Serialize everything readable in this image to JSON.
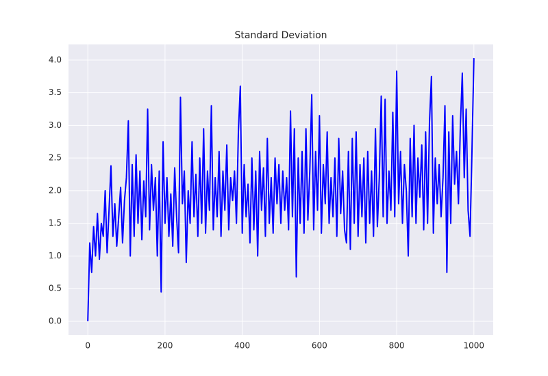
{
  "chart_data": {
    "type": "line",
    "title": "Standard Deviation",
    "x": [
      0,
      5,
      10,
      15,
      20,
      25,
      30,
      35,
      40,
      45,
      50,
      55,
      60,
      65,
      70,
      75,
      80,
      85,
      90,
      95,
      100,
      105,
      110,
      115,
      120,
      125,
      130,
      135,
      140,
      145,
      150,
      155,
      160,
      165,
      170,
      175,
      180,
      185,
      190,
      195,
      200,
      205,
      210,
      215,
      220,
      225,
      230,
      235,
      240,
      245,
      250,
      255,
      260,
      265,
      270,
      275,
      280,
      285,
      290,
      295,
      300,
      305,
      310,
      315,
      320,
      325,
      330,
      335,
      340,
      345,
      350,
      355,
      360,
      365,
      370,
      375,
      380,
      385,
      390,
      395,
      400,
      405,
      410,
      415,
      420,
      425,
      430,
      435,
      440,
      445,
      450,
      455,
      460,
      465,
      470,
      475,
      480,
      485,
      490,
      495,
      500,
      505,
      510,
      515,
      520,
      525,
      530,
      535,
      540,
      545,
      550,
      555,
      560,
      565,
      570,
      575,
      580,
      585,
      590,
      595,
      600,
      605,
      610,
      615,
      620,
      625,
      630,
      635,
      640,
      645,
      650,
      655,
      660,
      665,
      670,
      675,
      680,
      685,
      690,
      695,
      700,
      705,
      710,
      715,
      720,
      725,
      730,
      735,
      740,
      745,
      750,
      755,
      760,
      765,
      770,
      775,
      780,
      785,
      790,
      795,
      800,
      805,
      810,
      815,
      820,
      825,
      830,
      835,
      840,
      845,
      850,
      855,
      860,
      865,
      870,
      875,
      880,
      885,
      890,
      895,
      900,
      905,
      910,
      915,
      920,
      925,
      930,
      935,
      940,
      945,
      950,
      955,
      960,
      965,
      970,
      975,
      980,
      985,
      990,
      995,
      1000
    ],
    "series": [
      {
        "name": "Standard Deviation",
        "color": "#0000ff",
        "values": [
          0,
          1.2,
          0.75,
          1.45,
          1.0,
          1.65,
          0.95,
          1.5,
          1.3,
          2.0,
          1.05,
          1.7,
          2.38,
          1.3,
          1.8,
          1.15,
          1.6,
          2.05,
          1.2,
          1.85,
          2.2,
          3.07,
          1.0,
          2.4,
          1.3,
          2.55,
          1.5,
          2.3,
          1.25,
          2.15,
          1.6,
          3.25,
          1.4,
          2.4,
          1.7,
          2.2,
          1.0,
          2.3,
          0.45,
          2.75,
          1.5,
          2.2,
          1.3,
          1.95,
          1.15,
          2.35,
          1.6,
          1.05,
          3.43,
          1.8,
          2.3,
          0.9,
          2.0,
          1.5,
          2.75,
          1.6,
          2.25,
          1.3,
          2.5,
          1.5,
          2.95,
          1.35,
          2.3,
          1.7,
          3.3,
          1.4,
          2.2,
          1.6,
          2.6,
          1.3,
          2.3,
          1.7,
          2.7,
          1.4,
          2.2,
          1.85,
          2.3,
          1.5,
          2.9,
          3.6,
          1.35,
          2.4,
          1.6,
          2.1,
          1.2,
          2.5,
          1.4,
          2.3,
          1.0,
          2.6,
          1.7,
          2.35,
          1.3,
          2.8,
          1.5,
          2.2,
          1.35,
          2.5,
          1.8,
          2.4,
          1.5,
          2.3,
          1.7,
          2.2,
          1.4,
          3.22,
          1.6,
          2.95,
          0.68,
          2.5,
          1.5,
          2.6,
          1.35,
          2.95,
          1.55,
          2.3,
          3.47,
          1.4,
          2.6,
          1.7,
          3.15,
          1.35,
          2.4,
          1.8,
          2.9,
          1.5,
          2.2,
          1.6,
          2.5,
          1.3,
          2.8,
          1.65,
          2.3,
          1.4,
          1.2,
          2.6,
          1.1,
          2.8,
          1.5,
          2.9,
          1.3,
          2.4,
          1.6,
          2.5,
          1.2,
          2.6,
          1.5,
          2.3,
          1.3,
          2.95,
          1.45,
          2.2,
          3.45,
          1.6,
          3.4,
          1.5,
          2.3,
          1.7,
          3.2,
          1.6,
          3.83,
          1.8,
          2.6,
          1.5,
          2.4,
          2.0,
          1.0,
          2.8,
          1.6,
          3.0,
          1.5,
          2.5,
          1.9,
          2.7,
          1.4,
          2.9,
          1.5,
          3.05,
          3.75,
          1.35,
          2.5,
          1.8,
          2.4,
          1.6,
          2.2,
          3.3,
          0.75,
          2.9,
          1.5,
          3.15,
          2.1,
          2.6,
          1.8,
          3.0,
          3.8,
          2.2,
          3.25,
          1.7,
          1.3,
          2.6,
          4.03
        ]
      }
    ],
    "xlim": [
      -50,
      1050
    ],
    "xticks": [
      0,
      200,
      400,
      600,
      800,
      1000
    ],
    "ylim": [
      -0.21,
      4.24
    ],
    "yticks": [
      {
        "value": 0,
        "label": "0.0"
      },
      0.5,
      {
        "value": 1,
        "label": "1.0"
      },
      1.5,
      {
        "value": 2,
        "label": "2.0"
      },
      2.5,
      {
        "value": 3,
        "label": "3.0"
      },
      3.5,
      {
        "value": 4,
        "label": "4.0"
      }
    ],
    "grid": true
  }
}
